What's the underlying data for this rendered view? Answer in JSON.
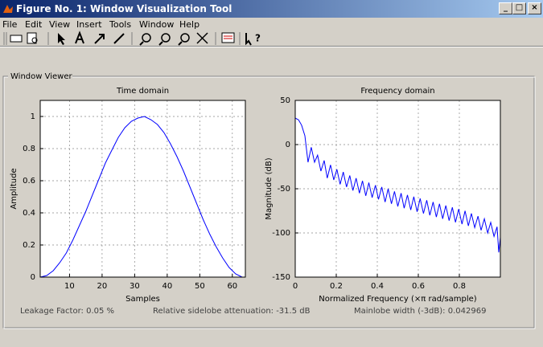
{
  "window": {
    "title": "Figure No. 1: Window Visualization Tool",
    "menu": [
      "File",
      "Edit",
      "View",
      "Insert",
      "Tools",
      "Window",
      "Help"
    ]
  },
  "panel": {
    "title": "Window Viewer"
  },
  "status": {
    "leakage": "Leakage Factor: 0.05 %",
    "attenuation": "Relative sidelobe attenuation: -31.5 dB",
    "mainlobe": "Mainlobe width (-3dB): 0.042969"
  },
  "chart_data": [
    {
      "type": "line",
      "title": "Time domain",
      "xlabel": "Samples",
      "ylabel": "Amplitude",
      "x": [
        1,
        3,
        5,
        7,
        9,
        11,
        13,
        15,
        17,
        19,
        21,
        23,
        25,
        27,
        29,
        31,
        33,
        35,
        37,
        39,
        41,
        43,
        45,
        47,
        49,
        51,
        53,
        55,
        57,
        59,
        61,
        63,
        64
      ],
      "values": [
        0,
        0.01,
        0.04,
        0.09,
        0.15,
        0.23,
        0.32,
        0.41,
        0.51,
        0.61,
        0.71,
        0.79,
        0.87,
        0.93,
        0.97,
        0.99,
        1.0,
        0.98,
        0.95,
        0.9,
        0.83,
        0.75,
        0.66,
        0.56,
        0.46,
        0.36,
        0.27,
        0.19,
        0.12,
        0.06,
        0.02,
        0,
        0
      ],
      "color": "#0000ff",
      "xlim": [
        1,
        64
      ],
      "ylim": [
        0,
        1.1
      ],
      "xticks": [
        10,
        20,
        30,
        40,
        50,
        60
      ],
      "yticks": [
        0,
        0.2,
        0.4,
        0.6,
        0.8,
        1
      ],
      "grid": true
    },
    {
      "type": "line",
      "title": "Frequency domain",
      "xlabel": "Normalized Frequency  (×π rad/sample)",
      "ylabel": "Magnitude (dB)",
      "x": [
        0,
        0.016,
        0.031,
        0.047,
        0.0625,
        0.078,
        0.094,
        0.109,
        0.125,
        0.141,
        0.156,
        0.172,
        0.188,
        0.203,
        0.219,
        0.234,
        0.25,
        0.266,
        0.281,
        0.297,
        0.313,
        0.328,
        0.344,
        0.359,
        0.375,
        0.391,
        0.406,
        0.422,
        0.438,
        0.453,
        0.469,
        0.484,
        0.5,
        0.516,
        0.531,
        0.547,
        0.563,
        0.578,
        0.594,
        0.609,
        0.625,
        0.641,
        0.656,
        0.672,
        0.688,
        0.703,
        0.719,
        0.734,
        0.75,
        0.766,
        0.781,
        0.797,
        0.813,
        0.828,
        0.844,
        0.859,
        0.875,
        0.891,
        0.906,
        0.922,
        0.938,
        0.953,
        0.969,
        0.984,
        0.992,
        1.0
      ],
      "values": [
        30,
        28,
        22,
        10,
        -20,
        -3,
        -20,
        -12,
        -30,
        -18,
        -38,
        -23,
        -40,
        -28,
        -45,
        -31,
        -48,
        -35,
        -52,
        -38,
        -55,
        -41,
        -58,
        -43,
        -60,
        -46,
        -62,
        -48,
        -65,
        -50,
        -67,
        -53,
        -70,
        -55,
        -72,
        -57,
        -74,
        -59,
        -76,
        -61,
        -78,
        -63,
        -80,
        -65,
        -82,
        -67,
        -84,
        -69,
        -86,
        -71,
        -88,
        -73,
        -90,
        -75,
        -92,
        -78,
        -94,
        -81,
        -97,
        -84,
        -100,
        -88,
        -104,
        -93,
        -122,
        -105
      ],
      "color": "#0000ff",
      "xlim": [
        0,
        1
      ],
      "ylim": [
        -150,
        50
      ],
      "xticks": [
        0,
        0.2,
        0.4,
        0.6,
        0.8
      ],
      "yticks": [
        -150,
        -100,
        -50,
        0,
        50
      ],
      "grid": true
    }
  ]
}
